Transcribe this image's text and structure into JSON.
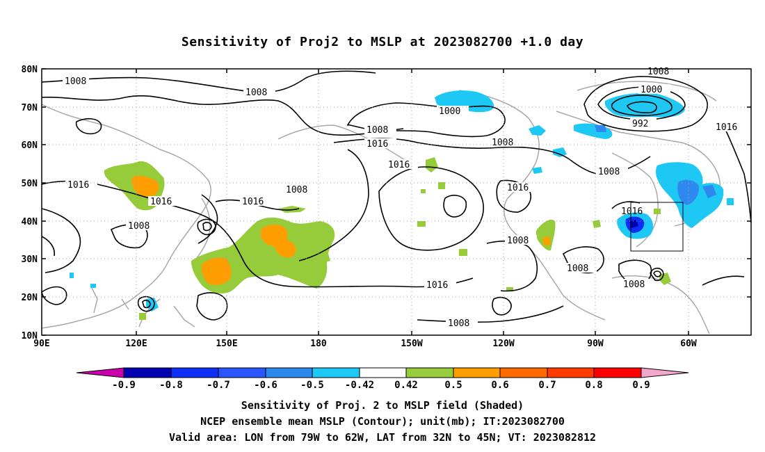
{
  "title": "Sensitivity of Proj2 to MSLP at 2023082700 +1.0 day",
  "map": {
    "lat_labels": [
      "80N",
      "70N",
      "60N",
      "50N",
      "40N",
      "30N",
      "20N",
      "10N"
    ],
    "lon_labels": [
      "90E",
      "120E",
      "150E",
      "180",
      "150W",
      "120W",
      "90W",
      "60W"
    ],
    "valid_area_box": {
      "lon_west": "79W",
      "lon_east": "62W",
      "lat_south": "32N",
      "lat_north": "45N"
    },
    "contour_labels": [
      "1008",
      "1008",
      "1008",
      "1000",
      "1000",
      "992",
      "1008",
      "1016",
      "1016",
      "1016",
      "1008",
      "1016",
      "1008",
      "1008",
      "1016",
      "1008",
      "1016",
      "1008",
      "1016",
      "1008",
      "1016",
      "1008",
      "1008"
    ],
    "colors": {
      "neg_pink": "#cc00aa",
      "neg_09": "#0000b0",
      "neg_08": "#0f2ef5",
      "neg_07": "#2a55ff",
      "neg_06": "#2d89f0",
      "neg_05": "#1ec8f5",
      "zero": "#ffffff",
      "pos_05": "#96cc3a",
      "pos_06": "#ff9e00",
      "pos_07": "#ff6a00",
      "pos_08": "#ff3c00",
      "pos_09": "#ff0000",
      "pos_pink": "#f4a6cc",
      "coast": "#a8a8a8"
    }
  },
  "colorbar": {
    "labels": [
      "-0.9",
      "-0.8",
      "-0.7",
      "-0.6",
      "-0.5",
      "-0.42",
      "0.42",
      "0.5",
      "0.6",
      "0.7",
      "0.8",
      "0.9"
    ]
  },
  "captions": {
    "line1": "Sensitivity of Proj. 2 to MSLP field (Shaded)",
    "line2": "NCEP ensemble mean MSLP (Contour); unit(mb); IT:2023082700",
    "line3": "Valid area: LON from 79W to 62W, LAT from 32N to 45N; VT: 2023082812"
  }
}
